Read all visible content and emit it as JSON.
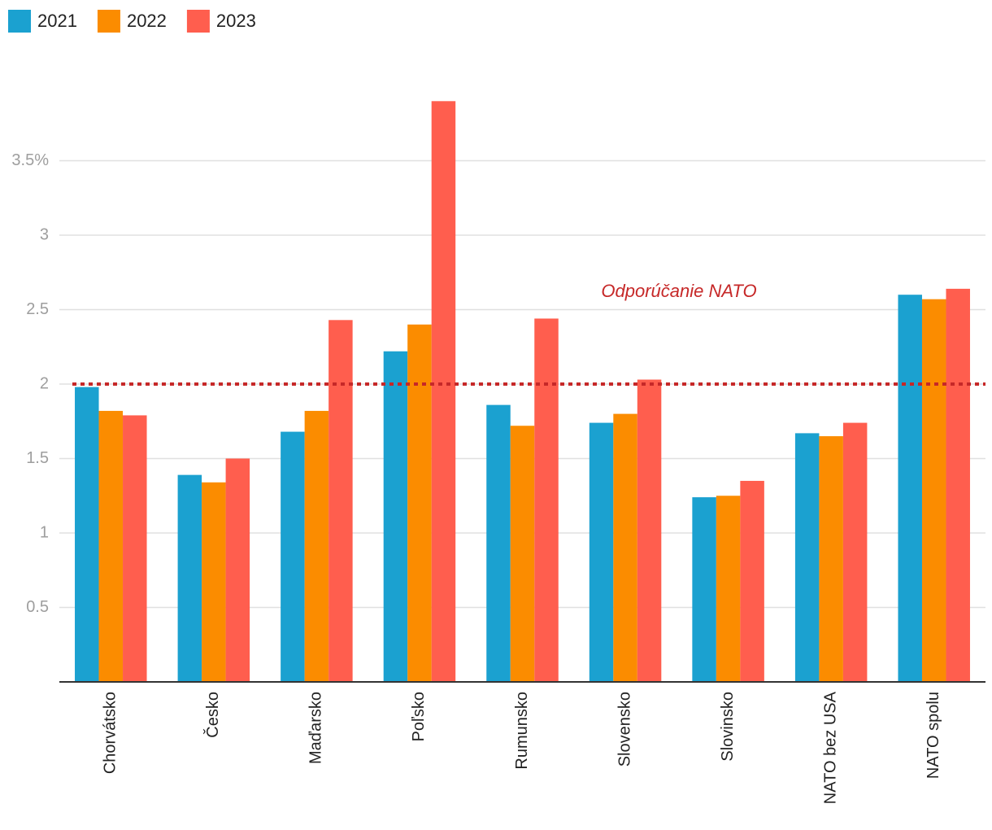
{
  "chart_data": {
    "type": "bar",
    "categories": [
      "Chorvátsko",
      "Česko",
      "Maďarsko",
      "Poľsko",
      "Rumunsko",
      "Slovensko",
      "Slovinsko",
      "NATO bez USA",
      "NATO spolu"
    ],
    "series": [
      {
        "name": "2021",
        "color": "#1ba1d0",
        "values": [
          1.98,
          1.39,
          1.68,
          2.22,
          1.86,
          1.74,
          1.24,
          1.67,
          2.6
        ]
      },
      {
        "name": "2022",
        "color": "#fb8c00",
        "values": [
          1.82,
          1.34,
          1.82,
          2.4,
          1.72,
          1.8,
          1.25,
          1.65,
          2.57
        ]
      },
      {
        "name": "2023",
        "color": "#ff5e4e",
        "values": [
          1.79,
          1.5,
          2.43,
          3.9,
          2.44,
          2.03,
          1.35,
          1.74,
          2.64
        ]
      }
    ],
    "ylim": [
      0,
      4.0
    ],
    "yticks": [
      0.5,
      1,
      1.5,
      2,
      2.5,
      3,
      {
        "value": 3.5,
        "label": "3.5%"
      }
    ],
    "grid": true,
    "legend": "top-left",
    "reference_line": {
      "value": 2,
      "label": "Odporúčanie NATO",
      "color": "#c62828"
    }
  }
}
